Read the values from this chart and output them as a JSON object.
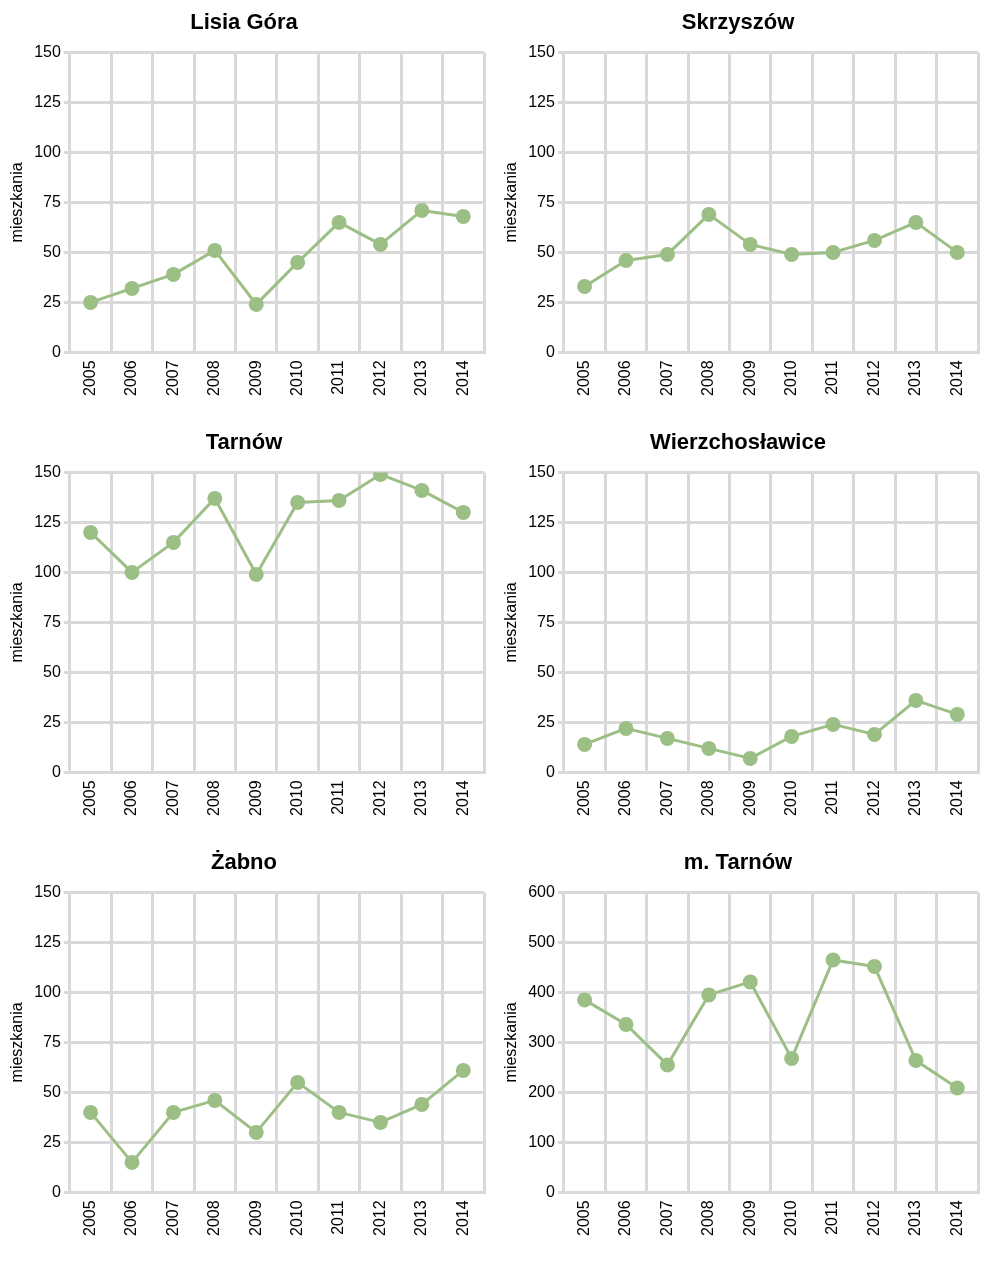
{
  "chart_data": [
    {
      "type": "line",
      "title": "Lisia Góra",
      "ylabel": "mieszkania",
      "categories": [
        "2005",
        "2006",
        "2007",
        "2008",
        "2009",
        "2010",
        "2011",
        "2012",
        "2013",
        "2014"
      ],
      "series": [
        {
          "color": "#9bbf85",
          "values": [
            25,
            32,
            39,
            51,
            24,
            45,
            65,
            54,
            71,
            68
          ]
        }
      ],
      "ylim": [
        0,
        150
      ],
      "yticks": [
        0,
        25,
        50,
        75,
        100,
        125,
        150
      ],
      "grid": true,
      "marker": "circle",
      "line_style": "solid"
    },
    {
      "type": "line",
      "title": "Skrzyszów",
      "ylabel": "mieszkania",
      "categories": [
        "2005",
        "2006",
        "2007",
        "2008",
        "2009",
        "2010",
        "2011",
        "2012",
        "2013",
        "2014"
      ],
      "series": [
        {
          "color": "#9bbf85",
          "values": [
            33,
            46,
            49,
            69,
            54,
            49,
            50,
            56,
            65,
            50
          ]
        }
      ],
      "ylim": [
        0,
        150
      ],
      "yticks": [
        0,
        25,
        50,
        75,
        100,
        125,
        150
      ],
      "grid": true,
      "marker": "circle",
      "line_style": "solid"
    },
    {
      "type": "line",
      "title": "Tarnów",
      "ylabel": "mieszkania",
      "categories": [
        "2005",
        "2006",
        "2007",
        "2008",
        "2009",
        "2010",
        "2011",
        "2012",
        "2013",
        "2014"
      ],
      "series": [
        {
          "color": "#9bbf85",
          "values": [
            120,
            100,
            115,
            137,
            99,
            135,
            136,
            149,
            141,
            130
          ]
        }
      ],
      "ylim": [
        0,
        150
      ],
      "yticks": [
        0,
        25,
        50,
        75,
        100,
        125,
        150
      ],
      "grid": true,
      "marker": "circle",
      "line_style": "solid"
    },
    {
      "type": "line",
      "title": "Wierzchosławice",
      "ylabel": "mieszkania",
      "categories": [
        "2005",
        "2006",
        "2007",
        "2008",
        "2009",
        "2010",
        "2011",
        "2012",
        "2013",
        "2014"
      ],
      "series": [
        {
          "color": "#9bbf85",
          "values": [
            14,
            22,
            17,
            12,
            7,
            18,
            24,
            19,
            36,
            29
          ]
        }
      ],
      "ylim": [
        0,
        150
      ],
      "yticks": [
        0,
        25,
        50,
        75,
        100,
        125,
        150
      ],
      "grid": true,
      "marker": "circle",
      "line_style": "solid"
    },
    {
      "type": "line",
      "title": "Żabno",
      "ylabel": "mieszkania",
      "categories": [
        "2005",
        "2006",
        "2007",
        "2008",
        "2009",
        "2010",
        "2011",
        "2012",
        "2013",
        "2014"
      ],
      "series": [
        {
          "color": "#9bbf85",
          "values": [
            40,
            15,
            40,
            46,
            30,
            55,
            40,
            35,
            44,
            61
          ]
        }
      ],
      "ylim": [
        0,
        150
      ],
      "yticks": [
        0,
        25,
        50,
        75,
        100,
        125,
        150
      ],
      "grid": true,
      "marker": "circle",
      "line_style": "solid"
    },
    {
      "type": "line",
      "title": "m. Tarnów",
      "ylabel": "mieszkania",
      "categories": [
        "2005",
        "2006",
        "2007",
        "2008",
        "2009",
        "2010",
        "2011",
        "2012",
        "2013",
        "2014"
      ],
      "series": [
        {
          "color": "#9bbf85",
          "values": [
            385,
            336,
            255,
            395,
            421,
            268,
            465,
            452,
            264,
            209
          ]
        }
      ],
      "ylim": [
        0,
        600
      ],
      "yticks": [
        0,
        100,
        200,
        300,
        400,
        500,
        600
      ],
      "grid": true,
      "marker": "circle",
      "line_style": "solid"
    }
  ]
}
